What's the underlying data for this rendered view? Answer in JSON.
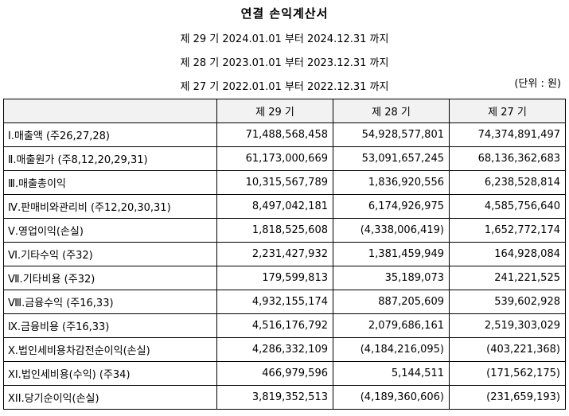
{
  "title": "연결 손익계산서",
  "periods": [
    "제 29 기 2024.01.01 부터 2024.12.31 까지",
    "제 28 기 2023.01.01 부터 2023.12.31 까지",
    "제 27 기 2022.01.01 부터 2022.12.31 까지"
  ],
  "unit": "(단위 : 원)",
  "columns": [
    "",
    "제 29 기",
    "제 28 기",
    "제 27 기"
  ],
  "rows": [
    {
      "label": "Ⅰ.매출액 (주26,27,28)",
      "v29": "71,488,568,458",
      "v28": "54,928,577,801",
      "v27": "74,374,891,497"
    },
    {
      "label": "Ⅱ.매출원가 (주8,12,20,29,31)",
      "v29": "61,173,000,669",
      "v28": "53,091,657,245",
      "v27": "68,136,362,683"
    },
    {
      "label": "Ⅲ.매출총이익",
      "v29": "10,315,567,789",
      "v28": "1,836,920,556",
      "v27": "6,238,528,814"
    },
    {
      "label": "Ⅳ.판매비와관리비 (주12,20,30,31)",
      "v29": "8,497,042,181",
      "v28": "6,174,926,975",
      "v27": "4,585,756,640"
    },
    {
      "label": "Ⅴ.영업이익(손실)",
      "v29": "1,818,525,608",
      "v28": "(4,338,006,419)",
      "v27": "1,652,772,174"
    },
    {
      "label": "Ⅵ.기타수익 (주32)",
      "v29": "2,231,427,932",
      "v28": "1,381,459,949",
      "v27": "164,928,084"
    },
    {
      "label": "Ⅶ.기타비용 (주32)",
      "v29": "179,599,813",
      "v28": "35,189,073",
      "v27": "241,221,525"
    },
    {
      "label": "Ⅷ.금융수익 (주16,33)",
      "v29": "4,932,155,174",
      "v28": "887,205,609",
      "v27": "539,602,928"
    },
    {
      "label": "Ⅸ.금융비용 (주16,33)",
      "v29": "4,516,176,792",
      "v28": "2,079,686,161",
      "v27": "2,519,303,029"
    },
    {
      "label": "Ⅹ.법인세비용차감전순이익(손실)",
      "v29": "4,286,332,109",
      "v28": "(4,184,216,095)",
      "v27": "(403,221,368)"
    },
    {
      "label": "XI.법인세비용(수익) (주34)",
      "v29": "466,979,596",
      "v28": "5,144,511",
      "v27": "(171,562,175)"
    },
    {
      "label": "ⅩII.당기순이익(손실)",
      "v29": "3,819,352,513",
      "v28": "(4,189,360,606)",
      "v27": "(231,659,193)"
    }
  ]
}
